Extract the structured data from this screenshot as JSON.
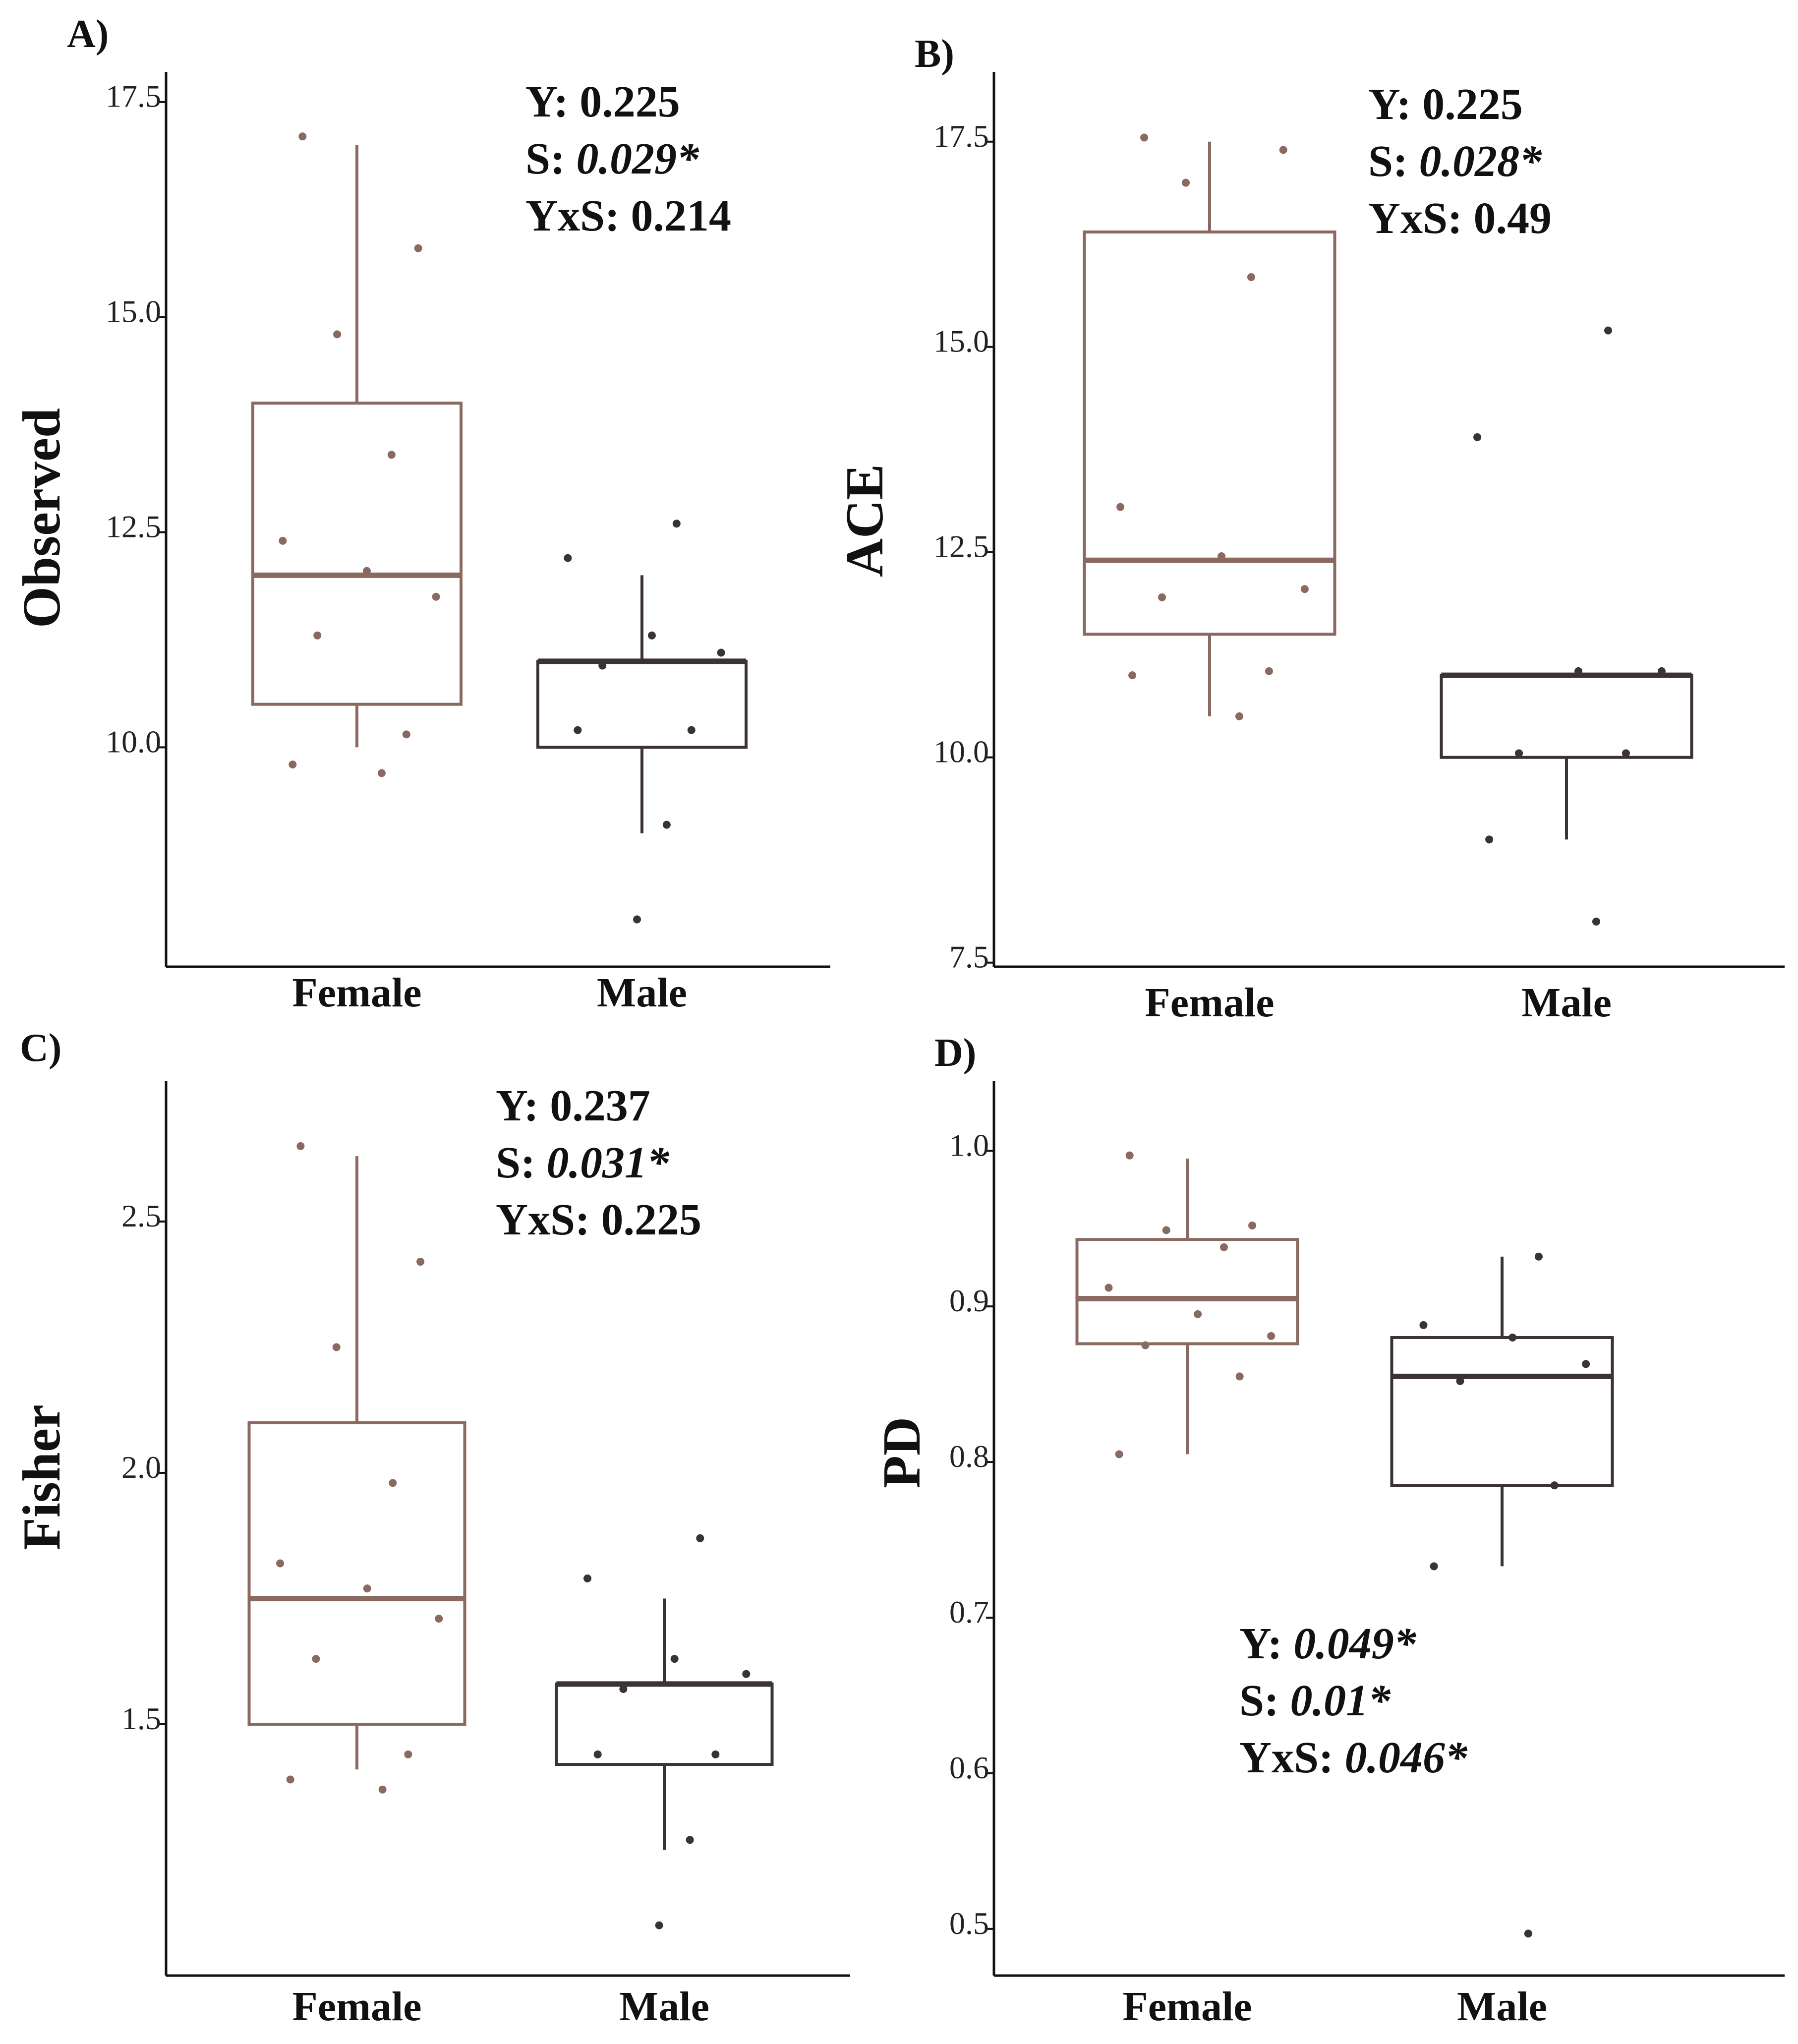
{
  "figure": {
    "colors": {
      "Female": "#8a6a60",
      "Male": "#3a3234",
      "axis": "#111111"
    }
  },
  "chart_data": [
    {
      "id": "A",
      "type": "boxplot",
      "panel_label": "A)",
      "ylabel": "Observed",
      "categories": [
        "Female",
        "Male"
      ],
      "yticks": [
        10.0,
        12.5,
        15.0,
        17.5
      ],
      "ytick_labels": [
        "10.0",
        "12.5",
        "15.0",
        "17.5"
      ],
      "ylim": [
        7.45,
        17.85
      ],
      "boxes": [
        {
          "category": "Female",
          "whisker_low": 10,
          "q1": 10.5,
          "median": 12,
          "q3": 14,
          "whisker_high": 17,
          "points": [
            17.1,
            15.8,
            14.8,
            13.4,
            12.4,
            12.05,
            11.75,
            11.3,
            10.15,
            9.8,
            9.7
          ]
        },
        {
          "category": "Male",
          "whisker_low": 9,
          "q1": 10,
          "median": 11,
          "q3": 11,
          "whisker_high": 12,
          "points": [
            12.6,
            12.2,
            11.3,
            11.1,
            10.95,
            10.2,
            10.2,
            9.1,
            8.0
          ]
        }
      ],
      "stats": [
        {
          "label": "Y: ",
          "value": "0.225",
          "italic": false
        },
        {
          "label": "S: ",
          "value": "0.029*",
          "italic": true
        },
        {
          "label": "YxS: ",
          "value": "0.214",
          "italic": false
        }
      ]
    },
    {
      "id": "B",
      "type": "boxplot",
      "panel_label": "B)",
      "ylabel": "ACE",
      "categories": [
        "Female",
        "Male"
      ],
      "yticks": [
        7.5,
        10.0,
        12.5,
        15.0,
        17.5
      ],
      "ytick_labels": [
        "7.5",
        "10.0",
        "12.5",
        "15.0",
        "17.5"
      ],
      "ylim": [
        7.45,
        18.35
      ],
      "boxes": [
        {
          "category": "Female",
          "whisker_low": 10.5,
          "q1": 11.5,
          "median": 12.4,
          "q3": 16.4,
          "whisker_high": 17.5,
          "points": [
            17.55,
            17.4,
            17.0,
            15.85,
            13.05,
            12.45,
            12.05,
            11.95,
            11.05,
            11.0,
            10.5
          ]
        },
        {
          "category": "Male",
          "whisker_low": 9,
          "q1": 10,
          "median": 11,
          "q3": 11,
          "whisker_high": 11,
          "points": [
            15.2,
            13.9,
            11.05,
            11.05,
            10.05,
            10.05,
            9.0,
            8.0
          ]
        }
      ],
      "stats": [
        {
          "label": "Y: ",
          "value": "0.225",
          "italic": false
        },
        {
          "label": "S: ",
          "value": "0.028*",
          "italic": true
        },
        {
          "label": "YxS: ",
          "value": "0.49",
          "italic": false
        }
      ]
    },
    {
      "id": "C",
      "type": "boxplot",
      "panel_label": "C)",
      "ylabel": "Fisher",
      "categories": [
        "Female",
        "Male"
      ],
      "yticks": [
        1.5,
        2.0,
        2.5
      ],
      "ytick_labels": [
        "1.5",
        "2.0",
        "2.5"
      ],
      "ylim": [
        1.0,
        2.78
      ],
      "boxes": [
        {
          "category": "Female",
          "whisker_low": 1.41,
          "q1": 1.5,
          "median": 1.75,
          "q3": 2.1,
          "whisker_high": 2.63,
          "points": [
            2.65,
            2.42,
            2.25,
            1.98,
            1.82,
            1.77,
            1.71,
            1.63,
            1.44,
            1.39,
            1.37
          ]
        },
        {
          "category": "Male",
          "whisker_low": 1.25,
          "q1": 1.42,
          "median": 1.58,
          "q3": 1.58,
          "whisker_high": 1.75,
          "points": [
            1.87,
            1.79,
            1.63,
            1.6,
            1.57,
            1.44,
            1.44,
            1.27,
            1.1
          ]
        }
      ],
      "stats": [
        {
          "label": "Y: ",
          "value": "0.237",
          "italic": false
        },
        {
          "label": "S: ",
          "value": "0.031*",
          "italic": true
        },
        {
          "label": "YxS: ",
          "value": "0.225",
          "italic": false
        }
      ]
    },
    {
      "id": "D",
      "type": "boxplot",
      "panel_label": "D)",
      "ylabel": "PD",
      "categories": [
        "Female",
        "Male"
      ],
      "yticks": [
        0.5,
        0.6,
        0.7,
        0.8,
        0.9,
        1.0
      ],
      "ytick_labels": [
        "0.5",
        "0.6",
        "0.7",
        "0.8",
        "0.9",
        "1.0"
      ],
      "ylim": [
        0.47,
        1.045
      ],
      "boxes": [
        {
          "category": "Female",
          "whisker_low": 0.805,
          "q1": 0.876,
          "median": 0.905,
          "q3": 0.943,
          "whisker_high": 0.995,
          "points": [
            0.997,
            0.952,
            0.949,
            0.938,
            0.912,
            0.895,
            0.881,
            0.875,
            0.855,
            0.805
          ]
        },
        {
          "category": "Male",
          "whisker_low": 0.733,
          "q1": 0.785,
          "median": 0.855,
          "q3": 0.88,
          "whisker_high": 0.932,
          "points": [
            0.932,
            0.888,
            0.88,
            0.863,
            0.852,
            0.785,
            0.733,
            0.497
          ]
        }
      ],
      "stats": [
        {
          "label": "Y: ",
          "value": "0.049*",
          "italic": true
        },
        {
          "label": "S: ",
          "value": "0.01*",
          "italic": true
        },
        {
          "label": "YxS: ",
          "value": "0.046*",
          "italic": true
        }
      ]
    }
  ]
}
